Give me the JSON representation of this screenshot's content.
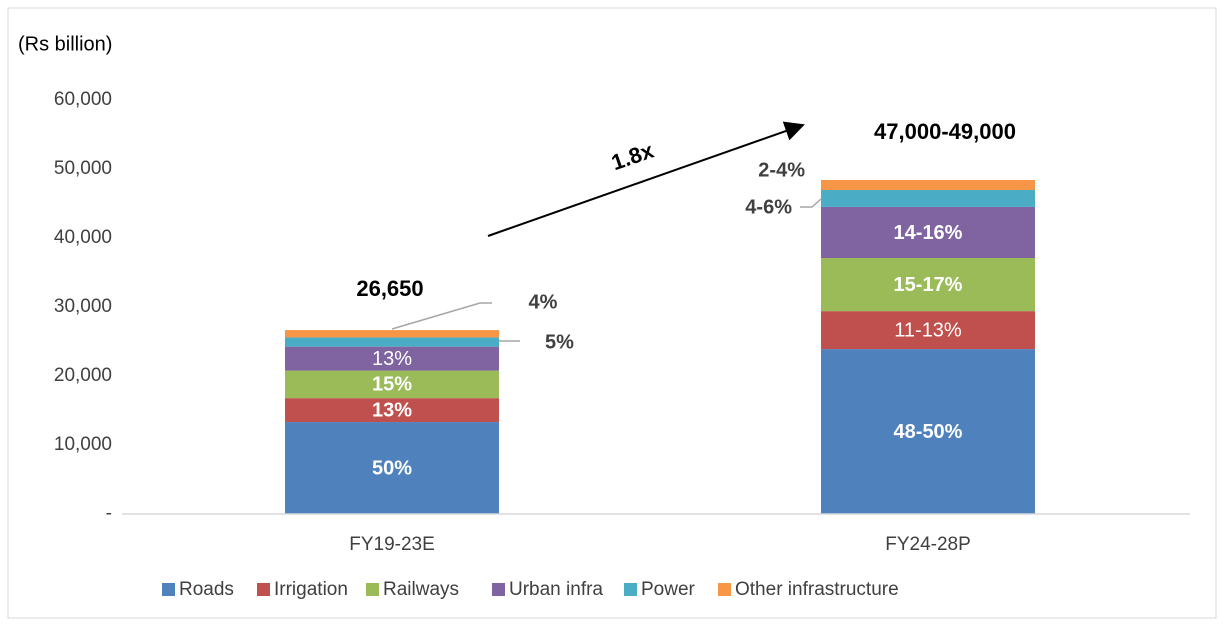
{
  "chart_data": {
    "type": "stacked_bar",
    "y_unit": "(Rs billion)",
    "categories": [
      "FY19-23E",
      "FY24-28P"
    ],
    "series": [
      {
        "name": "Roads",
        "color": "#4f81bd",
        "values": [
          13325,
          23900
        ],
        "value_labels": [
          "50%",
          "48-50%"
        ]
      },
      {
        "name": "Irrigation",
        "color": "#c0504d",
        "values": [
          3465,
          5500
        ],
        "value_labels": [
          "13%",
          "11-13%"
        ]
      },
      {
        "name": "Railways",
        "color": "#9bbb59",
        "values": [
          4000,
          7700
        ],
        "value_labels": [
          "15%",
          "15-17%"
        ]
      },
      {
        "name": "Urban infra",
        "color": "#8064a2",
        "values": [
          3465,
          7400
        ],
        "value_labels": [
          "13%",
          "14-16%"
        ]
      },
      {
        "name": "Power",
        "color": "#4bacc6",
        "values": [
          1333,
          2460
        ],
        "value_labels": [
          "5%",
          "4-6%"
        ]
      },
      {
        "name": "Other infrastructure",
        "color": "#f79646",
        "values": [
          1066,
          1450
        ],
        "value_labels": [
          "4%",
          "2-4%"
        ]
      }
    ],
    "total_labels": [
      "26,650",
      "47,000-49,000"
    ],
    "growth_annotation": "1.8x",
    "ylim": [
      0,
      60000
    ],
    "yticks": [
      {
        "value": 0,
        "label": "-"
      },
      {
        "value": 10000,
        "label": "10,000"
      },
      {
        "value": 20000,
        "label": "20,000"
      },
      {
        "value": 30000,
        "label": "30,000"
      },
      {
        "value": 40000,
        "label": "40,000"
      },
      {
        "value": 50000,
        "label": "50,000"
      },
      {
        "value": 60000,
        "label": "60,000"
      }
    ],
    "legend": "bottom"
  }
}
